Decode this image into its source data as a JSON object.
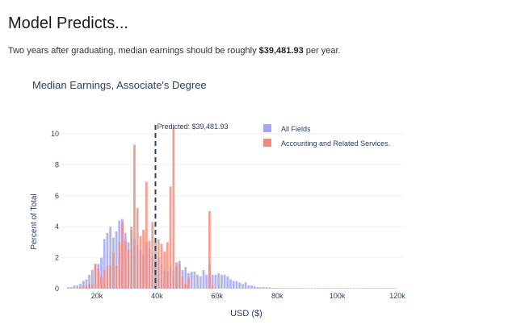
{
  "page": {
    "heading": "Model Predicts...",
    "summary_prefix": "Two years after graduating, median earnings should be roughly ",
    "summary_value": "$39,481.93",
    "summary_suffix": " per year."
  },
  "chart_data": {
    "type": "bar",
    "subtype": "overlaid-histogram",
    "title": "Median Earnings, Associate's Degree",
    "xlabel": "USD ($)",
    "ylabel": "Percent of Total",
    "xlim": [
      8000,
      120000
    ],
    "ylim": [
      0,
      10.5
    ],
    "xticks": [
      20000,
      40000,
      60000,
      80000,
      100000,
      120000
    ],
    "xtick_labels": [
      "20k",
      "40k",
      "60k",
      "80k",
      "100k",
      "120k"
    ],
    "yticks": [
      0,
      2,
      4,
      6,
      8,
      10
    ],
    "grid": true,
    "legend_position": "top-right",
    "bin_width": 1000,
    "bin_start": 10000,
    "annotation": {
      "x": 39481.93,
      "label": "Predicted: $39,481.93",
      "style": "dashed-vertical-line"
    },
    "series": [
      {
        "name": "All Fields",
        "color": "#a3a8f5",
        "values": [
          0.1,
          0.1,
          0.2,
          0.2,
          0.3,
          0.5,
          0.6,
          0.9,
          1.2,
          1.6,
          1.6,
          2.0,
          3.2,
          3.6,
          4.0,
          3.3,
          3.7,
          4.4,
          4.5,
          3.6,
          3.0,
          3.8,
          3.2,
          2.8,
          2.5,
          2.2,
          3.0,
          2.6,
          2.1,
          1.8,
          2.0,
          1.5,
          1.2,
          1.1,
          1.4,
          1.2,
          1.5,
          1.8,
          1.2,
          1.4,
          1.0,
          1.1,
          1.1,
          0.9,
          0.8,
          1.2,
          0.9,
          1.6,
          0.9,
          0.9,
          1.0,
          0.9,
          0.9,
          0.8,
          0.6,
          0.5,
          0.5,
          0.4,
          0.3,
          0.4,
          0.2,
          0.2,
          0.15,
          0.1,
          0.1,
          0.1,
          0.1,
          0.08,
          0.05,
          0.05,
          0.05,
          0.04,
          0.04,
          0.03,
          0.03,
          0.03,
          0.02,
          0.02,
          0.02,
          0.02,
          0.02,
          0.01,
          0.02,
          0.01,
          0.01,
          0.02,
          0.01,
          0.01,
          0.01,
          0.01,
          0.01,
          0.01,
          0.01,
          0.01,
          0.01,
          0.01,
          0.01,
          0.01,
          0.01,
          0.01,
          0.01,
          0.01,
          0.01,
          0.01,
          0.01,
          0.01,
          0.01,
          0.01,
          0.01,
          0.01
        ]
      },
      {
        "name": "Accounting and Related Services.",
        "color": "#f28a7a",
        "values": [
          0,
          0,
          0,
          0,
          0.1,
          0.2,
          0.2,
          0.3,
          0.3,
          1.6,
          1.3,
          0.8,
          1.2,
          1.5,
          1.5,
          2.3,
          1.5,
          3.0,
          4.3,
          3.1,
          2.5,
          4.0,
          9.3,
          5.2,
          3.4,
          3.8,
          6.9,
          3.1,
          4.3,
          3.0,
          3.2,
          2.9,
          2.4,
          3.0,
          6.6,
          10.4,
          1.7,
          1.6,
          0.8,
          0.3,
          0.7,
          0,
          0,
          0,
          0,
          0,
          0,
          5.0,
          0.2,
          0,
          0,
          0,
          0,
          0,
          0,
          0,
          0,
          0,
          0,
          0,
          0,
          0,
          0,
          0,
          0,
          0,
          0,
          0,
          0,
          0,
          0,
          0,
          0,
          0,
          0,
          0,
          0,
          0,
          0,
          0,
          0,
          0,
          0,
          0,
          0,
          0,
          0,
          0,
          0,
          0,
          0,
          0,
          0,
          0,
          0,
          0,
          0,
          0,
          0,
          0,
          0,
          0,
          0,
          0,
          0,
          0,
          0,
          0,
          0,
          0
        ]
      }
    ]
  }
}
